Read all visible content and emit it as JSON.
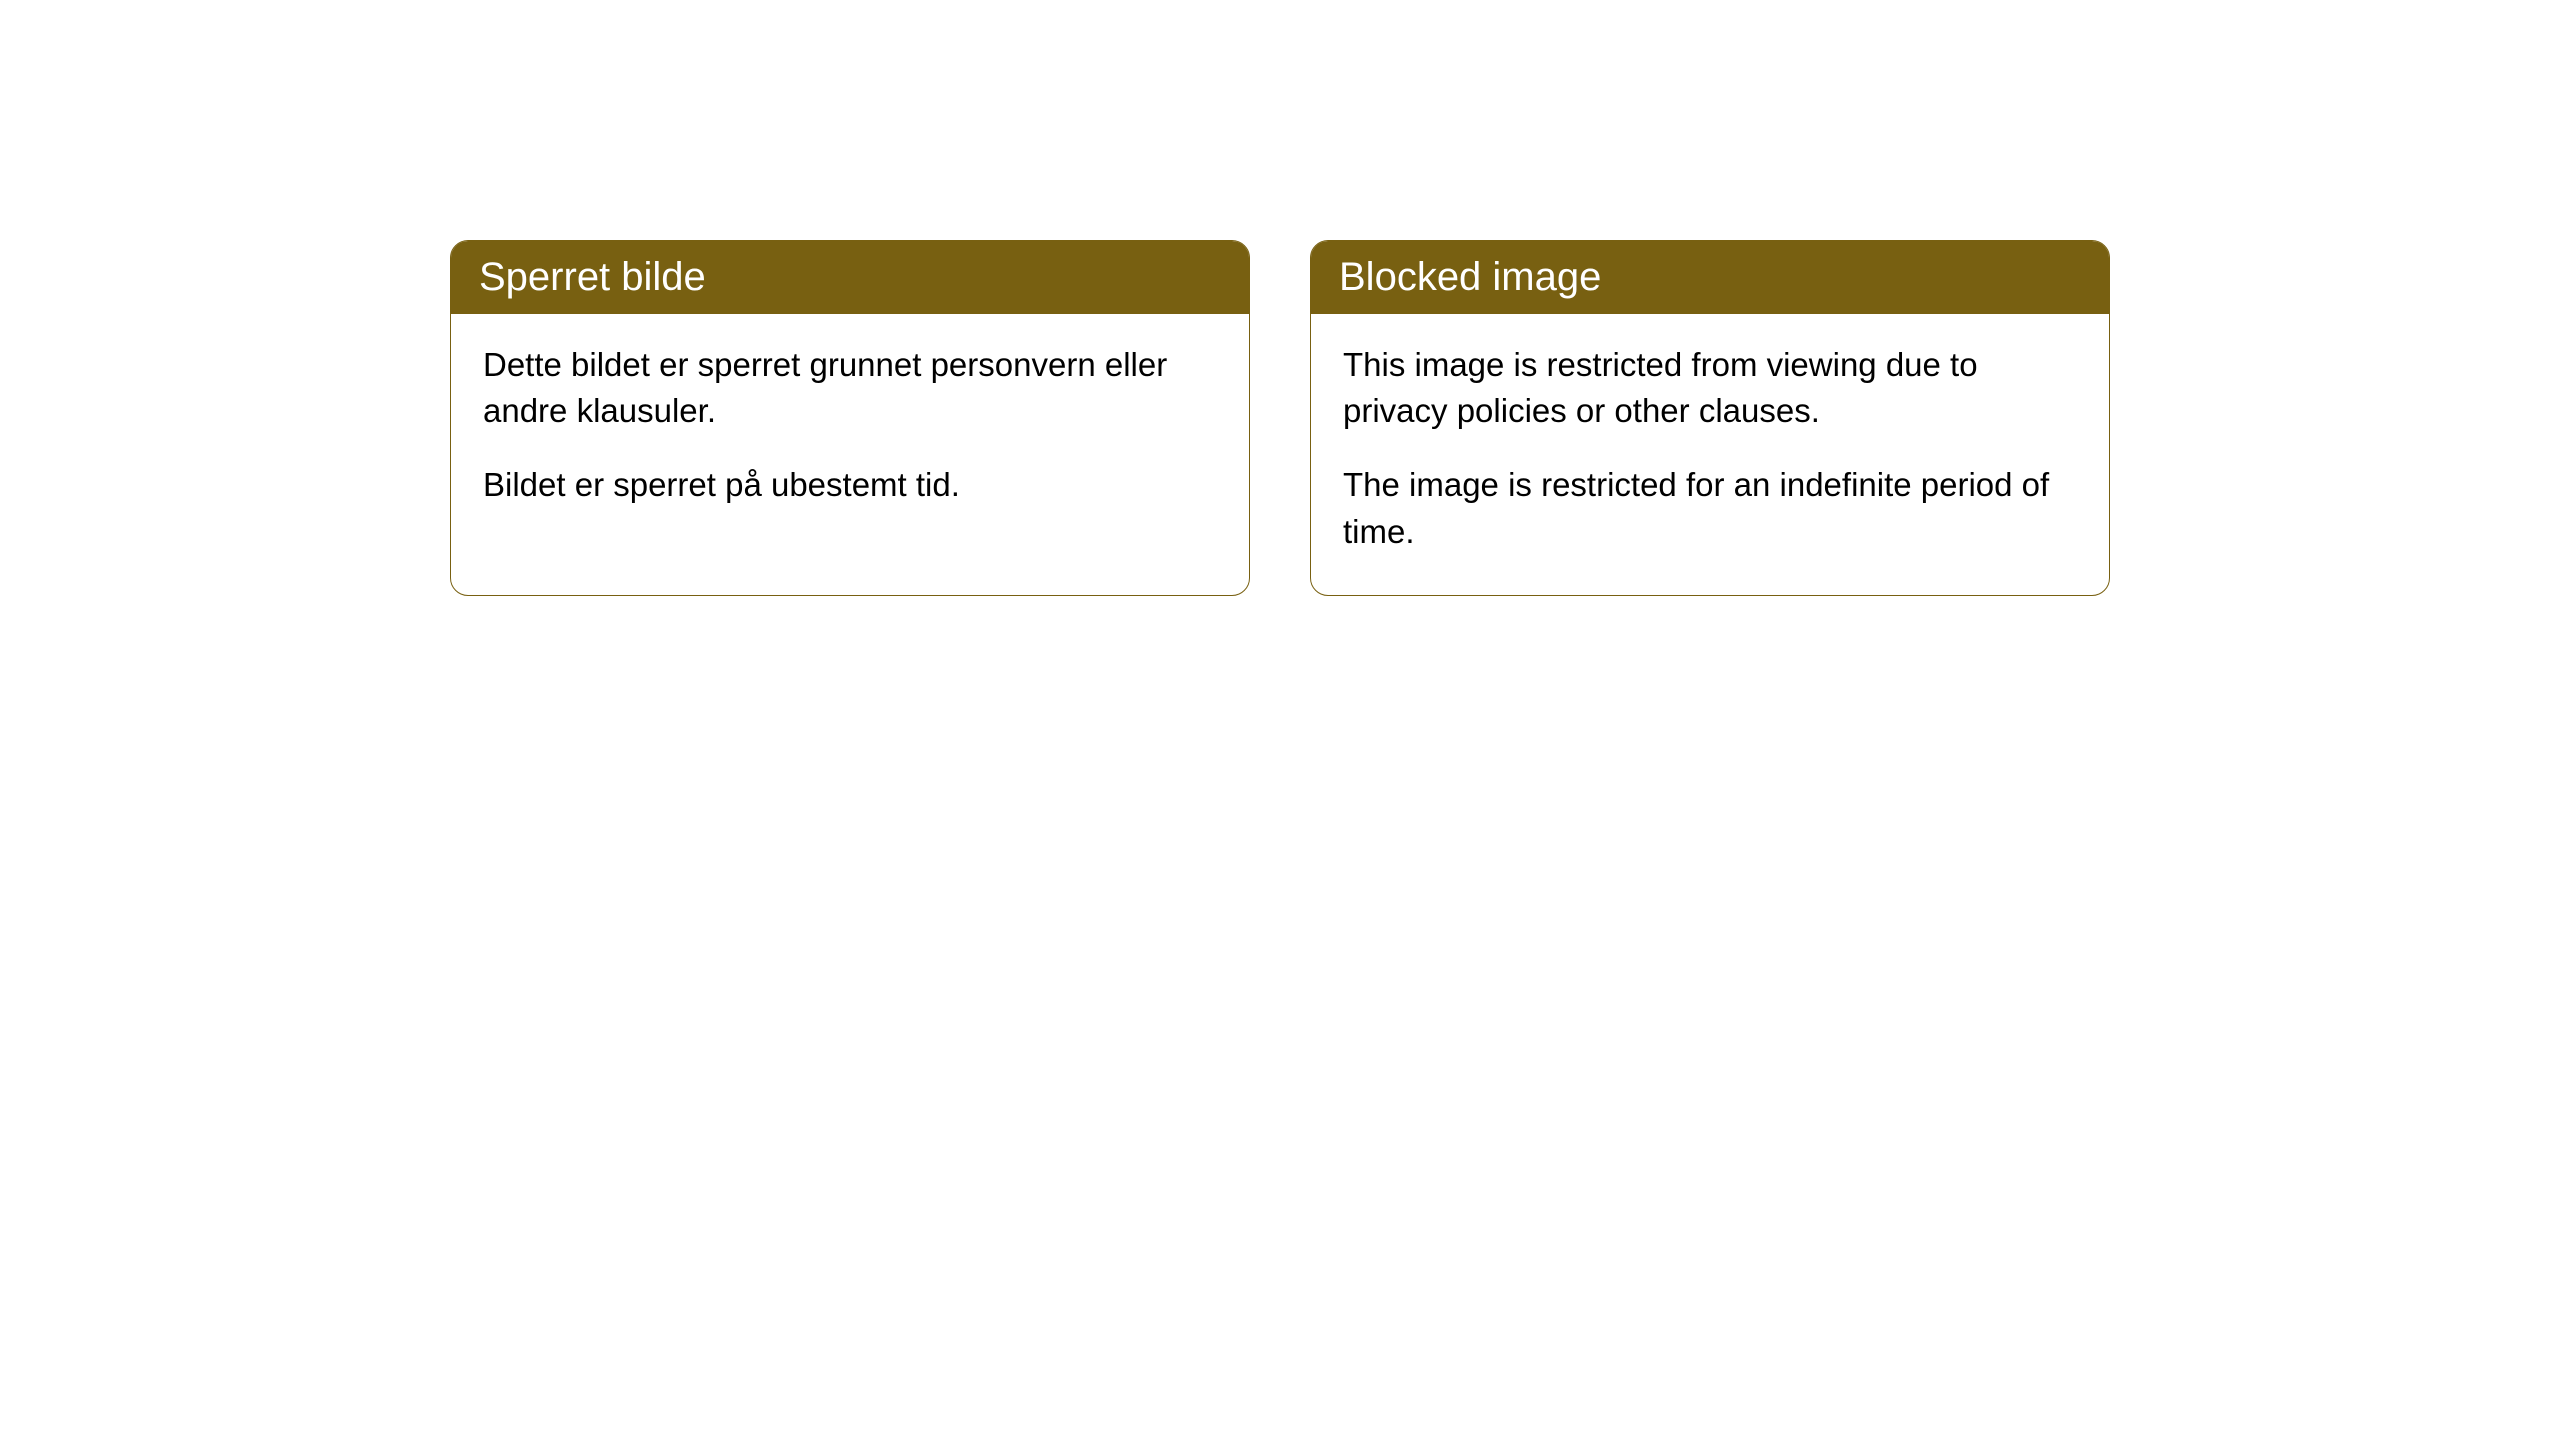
{
  "cards": [
    {
      "title": "Sperret bilde",
      "paragraph1": "Dette bildet er sperret grunnet personvern eller andre klausuler.",
      "paragraph2": "Bildet er sperret på ubestemt tid."
    },
    {
      "title": "Blocked image",
      "paragraph1": "This image is restricted from viewing due to privacy policies or other clauses.",
      "paragraph2": "The image is restricted for an indefinite period of time."
    }
  ],
  "style": {
    "header_bg": "#786011",
    "header_text": "#ffffff",
    "border_color": "#786011",
    "body_text": "#000000",
    "background": "#ffffff",
    "border_radius": 18,
    "title_fontsize": 40,
    "body_fontsize": 33
  }
}
